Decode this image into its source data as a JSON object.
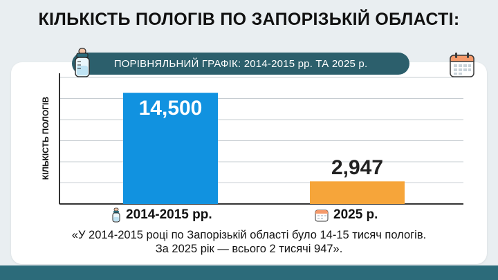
{
  "header": {
    "title": "КІЛЬКІСТЬ ПОЛОГІВ ПО ЗАПОРІЗЬКІЙ ОБЛАСТІ:",
    "subtitle": "ПОРІВНЯЛЬНИЙ ГРАФІК: 2014-2015 рр. ТА 2025 р."
  },
  "icons": {
    "bottle": "baby-bottle-icon",
    "calendar": "calendar-icon"
  },
  "colors": {
    "bar_2014": "#1192e0",
    "bar_2025": "#f6a53a",
    "value_2014": "#ffffff",
    "value_2025": "#222222",
    "band": "#2c5f6c"
  },
  "chart_data": {
    "type": "bar",
    "categories": [
      "2014-2015 рр.",
      "2025 р."
    ],
    "values": [
      14500,
      2947
    ],
    "value_labels": [
      "14,500",
      "2,947"
    ],
    "ylabel": "КІЛЬКІСТЬ ПОЛОГІВ",
    "ylim": [
      0,
      16500
    ],
    "grid": true
  },
  "quote": {
    "line1": "«У 2014-2015 році по Запорізькій області було 14-15 тисяч пологів.",
    "line2": "За 2025 рік — всього 2 тисячі 947»."
  }
}
